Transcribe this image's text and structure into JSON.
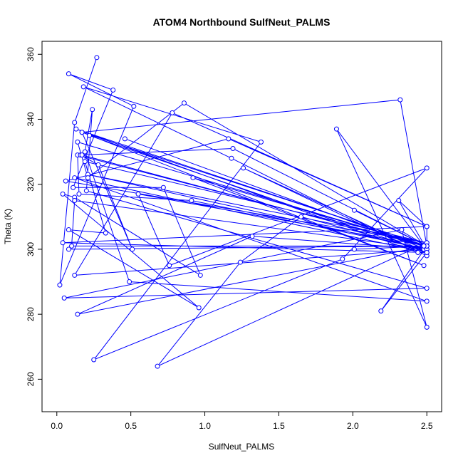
{
  "chart_data": {
    "type": "line",
    "title": "ATOM4 Northbound SulfNeut_PALMS",
    "xlabel": "SulfNeut_PALMS",
    "ylabel": "Theta (K)",
    "xlim": [
      -0.1,
      2.6
    ],
    "ylim": [
      250,
      364
    ],
    "xticks": [
      0.0,
      0.5,
      1.0,
      1.5,
      2.0,
      2.5
    ],
    "xtick_labels": [
      "0.0",
      "0.5",
      "1.0",
      "1.5",
      "2.0",
      "2.5"
    ],
    "yticks": [
      260,
      280,
      300,
      320,
      340,
      360
    ],
    "ytick_labels": [
      "260",
      "280",
      "300",
      "320",
      "340",
      "360"
    ],
    "grid": false,
    "legend": "none",
    "series": [
      {
        "line_color": "#0000ff",
        "x": [
          0.27,
          0.12,
          0.02,
          0.52,
          0.08,
          0.38,
          0.11,
          0.72,
          0.97,
          0.12,
          0.04,
          0.96,
          0.08,
          0.33,
          0.19,
          2.5,
          0.68,
          1.24,
          1.65,
          2.48,
          2.44,
          0.13,
          2.5,
          0.1,
          0.12,
          2.5,
          0.21,
          2.5,
          0.06,
          1.16,
          2.5,
          0.78,
          0.12,
          2.5,
          0.46,
          2.5,
          2.31,
          2.5,
          2.5,
          2.5,
          0.04,
          2.5,
          0.22,
          2.5,
          2.19,
          2.5,
          0.86,
          0.21,
          0.14,
          2.5,
          0.17,
          2.32,
          2.5,
          0.14,
          0.15,
          0.91,
          2.5,
          1.32,
          0.14,
          2.5,
          2.01,
          2.5,
          2.01,
          2.5,
          0.92,
          2.48,
          0.17,
          0.51,
          0.28,
          0.16,
          1.19,
          2.5,
          0.55,
          0.76,
          2.5,
          1.93,
          0.25,
          1.38,
          0.18,
          1.18,
          2.5,
          1.26,
          2.5,
          0.12,
          2.5,
          0.49,
          0.19,
          0.24,
          0.2,
          2.5,
          0.05,
          2.33,
          2.5,
          1.89,
          2.48,
          0.08,
          2.48,
          0.17
        ],
        "y": [
          359,
          339,
          289,
          344,
          354,
          349,
          319,
          319,
          292,
          316,
          317,
          282,
          306,
          305,
          327,
          302,
          264,
          296,
          310,
          300,
          299,
          337,
          301,
          301,
          315,
          300,
          323,
          302,
          321,
          334,
          307,
          342,
          292,
          300,
          334,
          300,
          315,
          307,
          300,
          307,
          302,
          299,
          335,
          299,
          281,
          301,
          345,
          322,
          333,
          301,
          336,
          346,
          301,
          329,
          317,
          315,
          300,
          304,
          280,
          301,
          312,
          301,
          300,
          301,
          322,
          295,
          336,
          300,
          326,
          329,
          331,
          301,
          317,
          295,
          325,
          297,
          266,
          333,
          350,
          328,
          298,
          325,
          299,
          322,
          284,
          290,
          330,
          343,
          318,
          288,
          285,
          306,
          276,
          337,
          301,
          300,
          301,
          329
        ]
      }
    ]
  }
}
